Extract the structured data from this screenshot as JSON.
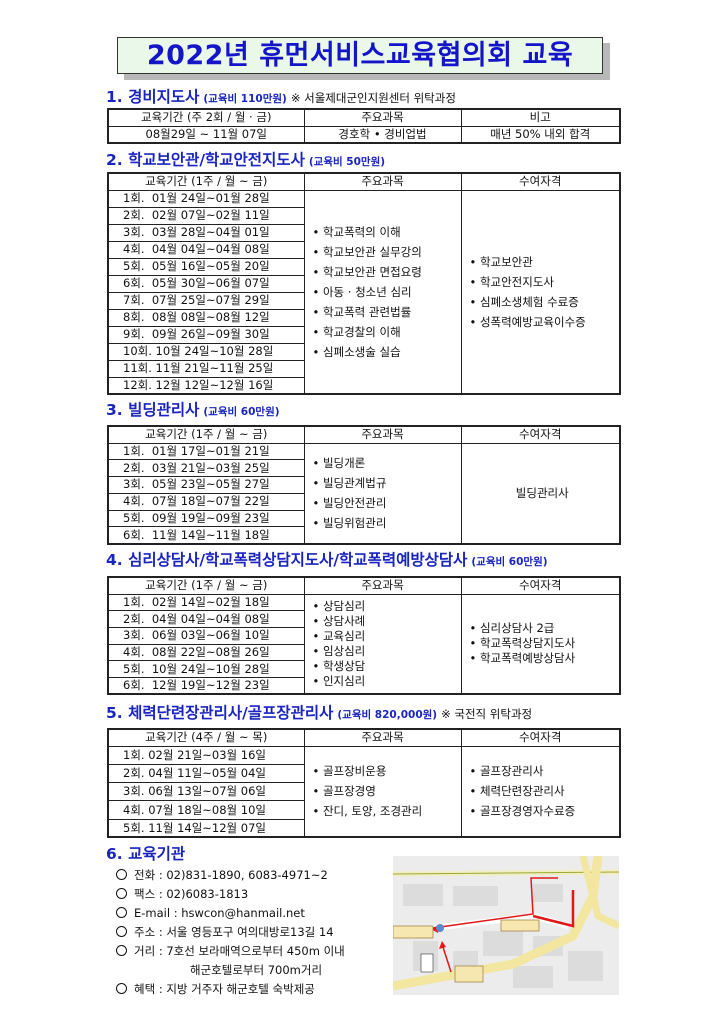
{
  "title": "2022년 휴먼서비스교육협의회 교육",
  "sections": [
    {
      "heading": "1. 경비지도사",
      "fee": "(교육비 110만원)",
      "note": "※ 서울제대군인지원센터 위탁과정",
      "headers": [
        "교육기간 (주 2회 / 월 · 금)",
        "주요과목",
        "비고"
      ],
      "period": "08월29일 ~ 11월 07일",
      "subjects": "경호학 • 경비업법",
      "remark": "매년 50% 내외 합격"
    },
    {
      "heading": "2. 학교보안관/학교안전지도사",
      "fee": "(교육비 50만원)",
      "headers": [
        "교육기간 (1주 / 월 ~ 금)",
        "주요과목",
        "수여자격"
      ],
      "periods": [
        "1회.  01월 24일~01월 28일",
        "2회.  02월 07일~02월 11일",
        "3회.  03월 28일~04월 01일",
        "4회.  04월 04일~04월 08일",
        "5회.  05월 16일~05월 20일",
        "6회.  05월 30일~06월 07일",
        "7회.  07월 25일~07월 29일",
        "8회.  08월 08일~08월 12일",
        "9회.  09월 26일~09월 30일",
        "10회. 10월 24일~10월 28일",
        "11회. 11월 21일~11월 25일",
        "12회. 12월 12일~12월 16일"
      ],
      "subjects": [
        "• 학교폭력의 이해",
        "• 학교보안관 실무강의",
        "• 학교보안관 면접요령",
        "• 아동 · 청소년 심리",
        "• 학교폭력 관련법률",
        "• 학교경찰의 이해",
        "• 심폐소생술 실습"
      ],
      "qualifications": [
        "• 학교보안관",
        "• 학교안전지도사",
        "• 심폐소생체험 수료증",
        "• 성폭력예방교육이수증"
      ]
    },
    {
      "heading": "3. 빌딩관리사",
      "fee": "(교육비 60만원)",
      "headers": [
        "교육기간  (1주 / 월 ~ 금)",
        "주요과목",
        "수여자격"
      ],
      "periods": [
        "1회.  01월 17일~01월 21일",
        "2회.  03월 21일~03월 25일",
        "3회.  05월 23일~05월 27일",
        "4회.  07월 18일~07월 22일",
        "5회.  09월 19일~09월 23일",
        "6회.  11월 14일~11월 18일"
      ],
      "subjects": [
        "• 빌딩개론",
        "• 빌딩관계법규",
        "• 빌딩안전관리",
        "• 빌딩위험관리"
      ],
      "qualifications": [
        "빌딩관리사"
      ]
    },
    {
      "heading": "4. 심리상담사/학교폭력상담지도사/학교폭력예방상담사",
      "fee": "(교육비 60만원)",
      "headers": [
        "교육기간 (1주 / 월 ~ 금)",
        "주요과목",
        "수여자격"
      ],
      "periods": [
        "1회.  02월 14일~02월 18일",
        "2회.  04월 04일~04월 08일",
        "3회.  06월 03일~06월 10일",
        "4회.  08월 22일~08월 26일",
        "5회.  10월 24일~10월 28일",
        "6회.  12월 19일~12월 23일"
      ],
      "subjects": [
        "• 상담심리",
        "• 상담사례",
        "• 교육심리",
        "• 임상심리",
        "• 학생상담",
        "• 인지심리"
      ],
      "qualifications": [
        "• 심리상담사 2급",
        "• 학교폭력상담지도사",
        "• 학교폭력예방상담사"
      ]
    },
    {
      "heading": "5. 체력단련장관리사/골프장관리사",
      "fee": "(교육비 820,000원)",
      "note": "※ 국전직 위탁과정",
      "headers": [
        "교육기간 (4주 / 월 ~ 목)",
        "주요과목",
        "수여자격"
      ],
      "periods": [
        "1회. 02월 21일~03월 16일",
        "2회. 04월 11일~05월 04일",
        "3회. 06월 13일~07월 06일",
        "4회. 07월 18일~08월 10일",
        "5회. 11월 14일~12월 07일"
      ],
      "subjects": [
        "• 골프장비운용",
        "• 골프장경영",
        "• 잔디, 토양, 조경관리"
      ],
      "qualifications": [
        "• 골프장관리사",
        "• 체력단련장관리사",
        "• 골프장경영자수료증"
      ]
    }
  ],
  "institution": {
    "heading": "6. 교육기관",
    "items": [
      "전화 : 02)831-1890, 6083-4971~2",
      "팩스 : 02)6083-1813",
      "E-mail : hswcon@hanmail.net",
      "주소 : 서울 영등포구 여의대방로13길 14",
      "거리 : 7호선 보라매역으로부터 450m 이내",
      "해군호텔로부터 700m거리",
      "혜택 : 지방 거주자 해군호텔 숙박제공"
    ]
  },
  "colors": {
    "heading": "#1a24c0",
    "title_bg": "#eaf8ea",
    "route": "#e01818"
  }
}
